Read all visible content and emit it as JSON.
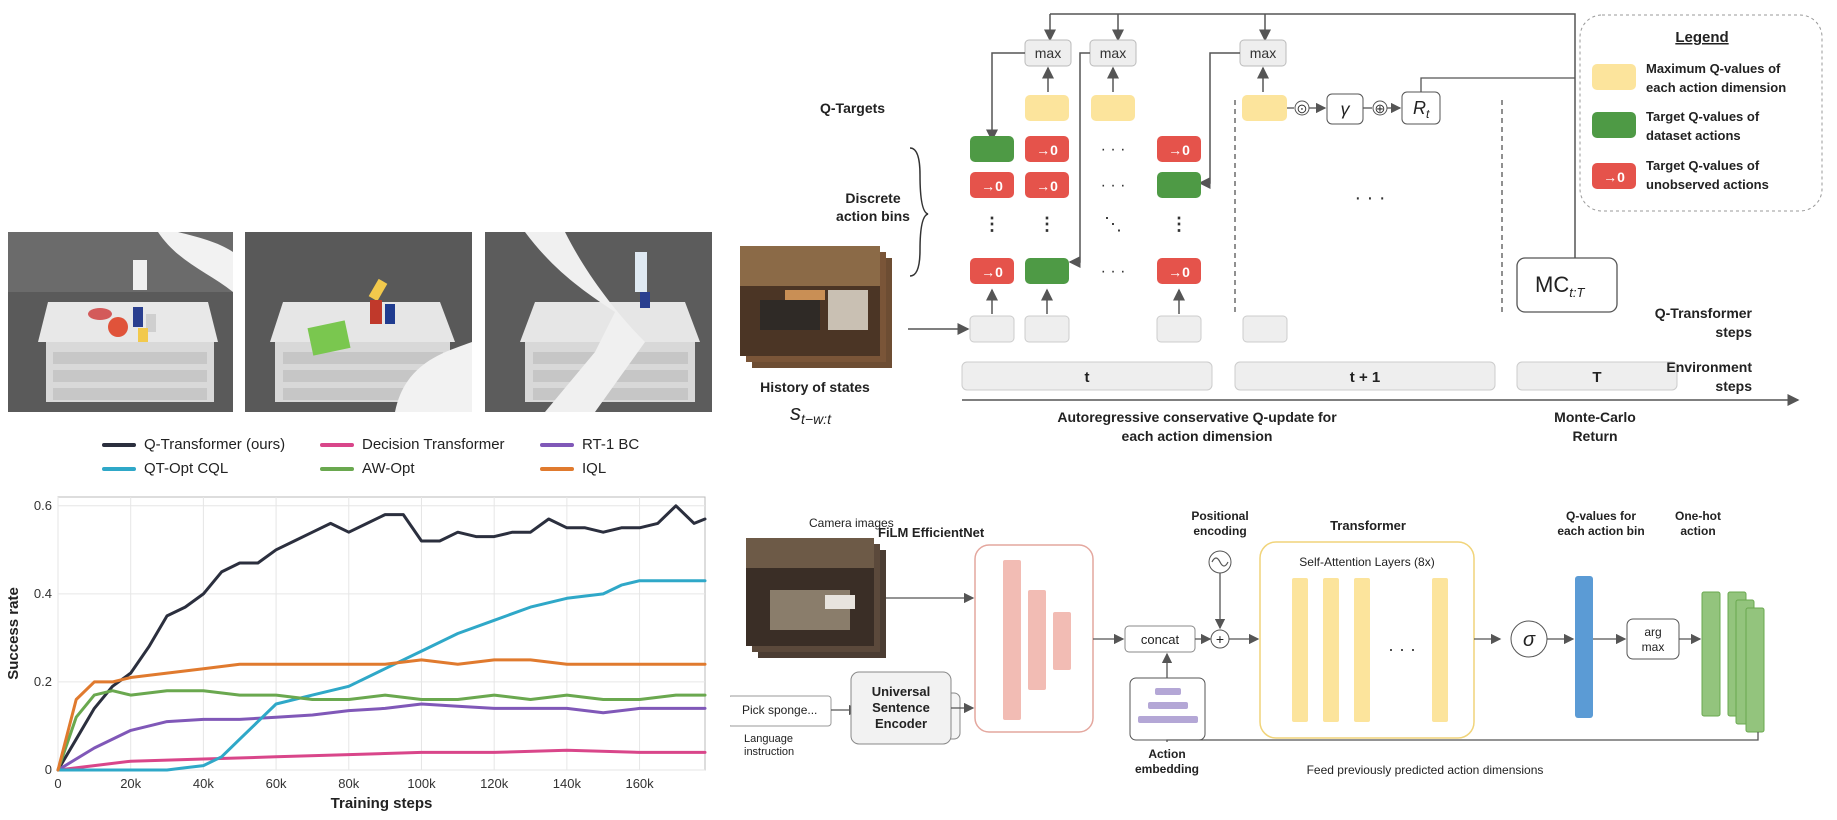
{
  "sim_scenes": [
    {
      "name": "scene-1"
    },
    {
      "name": "scene-2"
    },
    {
      "name": "scene-3"
    }
  ],
  "chart_data": {
    "type": "line",
    "xlabel": "Training steps",
    "ylabel": "Success rate",
    "xlim": [
      0,
      178000
    ],
    "ylim": [
      0,
      0.62
    ],
    "x_ticks": [
      "0",
      "20k",
      "40k",
      "60k",
      "80k",
      "100k",
      "120k",
      "140k",
      "160k"
    ],
    "x_tick_values": [
      0,
      20000,
      40000,
      60000,
      80000,
      100000,
      120000,
      140000,
      160000
    ],
    "y_ticks": [
      "0",
      "0.2",
      "0.4",
      "0.6"
    ],
    "y_tick_values": [
      0,
      0.2,
      0.4,
      0.6
    ],
    "grid": true,
    "legend_position": "top",
    "series": [
      {
        "name": "Q-Transformer (ours)",
        "color": "#2b2f3e",
        "x": [
          0,
          5000,
          10000,
          15000,
          20000,
          25000,
          30000,
          35000,
          40000,
          45000,
          50000,
          55000,
          60000,
          65000,
          70000,
          75000,
          80000,
          85000,
          90000,
          95000,
          100000,
          105000,
          110000,
          115000,
          120000,
          125000,
          130000,
          135000,
          140000,
          145000,
          150000,
          155000,
          160000,
          165000,
          170000,
          175000,
          178000
        ],
        "y": [
          0,
          0.07,
          0.14,
          0.19,
          0.22,
          0.28,
          0.35,
          0.37,
          0.4,
          0.45,
          0.47,
          0.47,
          0.5,
          0.52,
          0.54,
          0.56,
          0.54,
          0.56,
          0.58,
          0.58,
          0.52,
          0.52,
          0.54,
          0.53,
          0.53,
          0.54,
          0.54,
          0.57,
          0.55,
          0.55,
          0.54,
          0.55,
          0.55,
          0.56,
          0.6,
          0.56,
          0.57
        ]
      },
      {
        "name": "Decision Transformer",
        "color": "#d9468a",
        "x": [
          0,
          10000,
          20000,
          40000,
          60000,
          80000,
          100000,
          120000,
          140000,
          160000,
          178000
        ],
        "y": [
          0,
          0.01,
          0.02,
          0.025,
          0.03,
          0.035,
          0.04,
          0.04,
          0.045,
          0.04,
          0.04
        ]
      },
      {
        "name": "RT-1 BC",
        "color": "#8058b8",
        "x": [
          0,
          10000,
          20000,
          30000,
          40000,
          50000,
          60000,
          70000,
          80000,
          90000,
          100000,
          110000,
          120000,
          130000,
          140000,
          150000,
          160000,
          170000,
          178000
        ],
        "y": [
          0,
          0.05,
          0.09,
          0.11,
          0.115,
          0.115,
          0.12,
          0.125,
          0.135,
          0.14,
          0.15,
          0.145,
          0.14,
          0.14,
          0.14,
          0.13,
          0.14,
          0.14,
          0.14
        ]
      },
      {
        "name": "QT-Opt CQL",
        "color": "#2fa8c8",
        "x": [
          0,
          20000,
          30000,
          35000,
          40000,
          45000,
          50000,
          55000,
          60000,
          70000,
          80000,
          90000,
          100000,
          110000,
          120000,
          130000,
          140000,
          150000,
          155000,
          160000,
          170000,
          178000
        ],
        "y": [
          0,
          0,
          0,
          0.005,
          0.01,
          0.03,
          0.07,
          0.11,
          0.15,
          0.17,
          0.19,
          0.23,
          0.27,
          0.31,
          0.34,
          0.37,
          0.39,
          0.4,
          0.42,
          0.43,
          0.43,
          0.43
        ]
      },
      {
        "name": "AW-Opt",
        "color": "#6aa84f",
        "x": [
          0,
          5000,
          10000,
          15000,
          20000,
          30000,
          40000,
          50000,
          60000,
          70000,
          80000,
          90000,
          100000,
          110000,
          120000,
          130000,
          140000,
          150000,
          160000,
          170000,
          178000
        ],
        "y": [
          0,
          0.12,
          0.17,
          0.18,
          0.17,
          0.18,
          0.18,
          0.17,
          0.17,
          0.16,
          0.16,
          0.17,
          0.16,
          0.16,
          0.17,
          0.16,
          0.17,
          0.16,
          0.16,
          0.17,
          0.17
        ]
      },
      {
        "name": "IQL",
        "color": "#e07a2e",
        "x": [
          0,
          5000,
          10000,
          15000,
          20000,
          30000,
          40000,
          50000,
          60000,
          70000,
          80000,
          90000,
          100000,
          110000,
          120000,
          130000,
          140000,
          150000,
          160000,
          170000,
          178000
        ],
        "y": [
          0,
          0.16,
          0.2,
          0.2,
          0.21,
          0.22,
          0.23,
          0.24,
          0.24,
          0.24,
          0.24,
          0.24,
          0.25,
          0.24,
          0.25,
          0.25,
          0.24,
          0.24,
          0.24,
          0.24,
          0.24
        ]
      }
    ]
  },
  "top_diagram": {
    "q_targets": "Q-Targets",
    "discrete_bins": "Discrete\naction bins",
    "max": "max",
    "zero": "→0",
    "dots_h": "· · ·",
    "gamma": "γ",
    "odot": "⊙",
    "oplus": "⊕",
    "reward": "R",
    "reward_sub": "t",
    "mc": "MC",
    "mc_sub": "t:T",
    "history": "History of states",
    "state_s": "s",
    "state_sub": "t−w:t",
    "step_t": "t",
    "step_t1": "t + 1",
    "step_T": "T",
    "qt_steps": "Q-Transformer\nsteps",
    "env_steps": "Environment\nsteps",
    "autoreg": "Autoregressive conservative Q-update for\neach action dimension",
    "monte": "Monte-Carlo\nReturn",
    "legend_title": "Legend",
    "legend_max": "Maximum Q-values of\neach action dimension",
    "legend_target": "Target Q-values of\ndataset actions",
    "legend_unobs": "Target Q-values of\nunobserved actions",
    "colors": {
      "yellow": "#fce49c",
      "green": "#4e9a45",
      "red": "#e5534b",
      "gray": "#eeeeee"
    }
  },
  "bottom_diagram": {
    "camera": "Camera images",
    "film": "FiLM EfficientNet",
    "pos_enc": "Positional\nencoding",
    "transformer": "Transformer",
    "self_attn": "Self-Attention Layers (8x)",
    "qvalues": "Q-values for\neach action bin",
    "onehot": "One-hot\naction",
    "concat": "concat",
    "plus": "+",
    "sigma": "σ",
    "argmax": "arg\nmax",
    "pick": "Pick sponge...",
    "lang": "Language\ninstruction",
    "use": "Universal\nSentence\nEncoder",
    "action_emb": "Action\nembedding",
    "feed": "Feed previously predicted action dimensions",
    "dots": "· · ·",
    "colors": {
      "film": "#f2bcb4",
      "attn": "#fce49c",
      "q": "#5b9bd5",
      "onehot": "#93c47d",
      "emb": "#b4a7d6"
    }
  }
}
